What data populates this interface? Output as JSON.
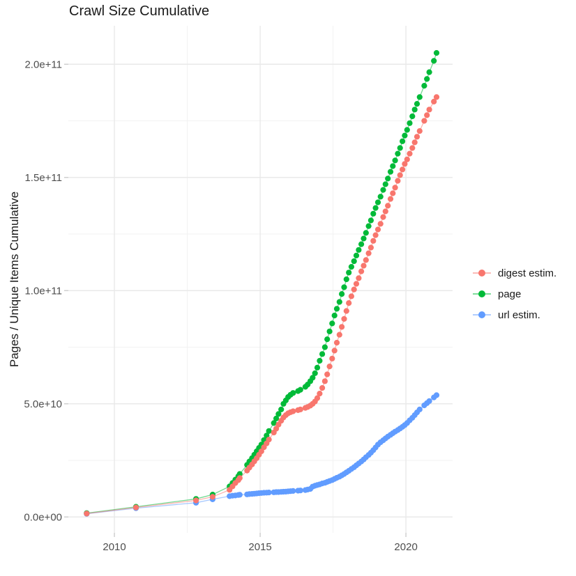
{
  "page": {
    "title": "Crawl Size Cumulative"
  },
  "chart_data": {
    "type": "scatter",
    "style": "points-with-lines",
    "title": "Crawl Size Cumulative",
    "xlabel": "",
    "ylabel": "Pages / Unique Items Cumulative",
    "x_unit": "year",
    "value_unit_note": "values stored in billions (1e9)",
    "xlim": [
      2008.42,
      2021.6
    ],
    "ylim_e9": [
      -7,
      217
    ],
    "grid": true,
    "legend_position": "right",
    "x_major_ticks": [
      {
        "value": 2010,
        "label": "2010"
      },
      {
        "value": 2015,
        "label": "2015"
      },
      {
        "value": 2020,
        "label": "2020"
      }
    ],
    "x_minor_ticks": [
      2012.5,
      2017.5
    ],
    "y_major_ticks": [
      {
        "value": 0,
        "label": "0.0e+00"
      },
      {
        "value": 50,
        "label": "5.0e+10"
      },
      {
        "value": 100,
        "label": "1.0e+11"
      },
      {
        "value": 150,
        "label": "1.5e+11"
      },
      {
        "value": 200,
        "label": "2.0e+11"
      }
    ],
    "y_minor_ticks": [
      25,
      75,
      125,
      175
    ],
    "colors": {
      "digest": "#F8766D",
      "page": "#00BA38",
      "url": "#619CFF"
    },
    "draw_order": [
      1,
      2,
      0
    ],
    "series": [
      {
        "name": "digest estim.",
        "color": "#F8766D",
        "points": [
          [
            2009.05,
            1.5
          ],
          [
            2010.74,
            4.2
          ],
          [
            2012.8,
            7.3
          ],
          [
            2013.37,
            8.9
          ],
          [
            2013.95,
            12
          ],
          [
            2014.05,
            13.5
          ],
          [
            2014.15,
            15
          ],
          [
            2014.25,
            16.3
          ],
          [
            2014.3,
            17.2
          ],
          [
            2014.55,
            20.5
          ],
          [
            2014.63,
            21.8
          ],
          [
            2014.72,
            23.2
          ],
          [
            2014.8,
            24.6
          ],
          [
            2014.88,
            26
          ],
          [
            2014.96,
            27.5
          ],
          [
            2015.04,
            29
          ],
          [
            2015.13,
            30.8
          ],
          [
            2015.22,
            32.5
          ],
          [
            2015.3,
            34.2
          ],
          [
            2015.47,
            37.3
          ],
          [
            2015.55,
            39
          ],
          [
            2015.63,
            40.8
          ],
          [
            2015.72,
            42.5
          ],
          [
            2015.8,
            44
          ],
          [
            2015.88,
            45
          ],
          [
            2015.96,
            45.8
          ],
          [
            2016.04,
            46.3
          ],
          [
            2016.13,
            46.7
          ],
          [
            2016.3,
            47.2
          ],
          [
            2016.38,
            47.5
          ],
          [
            2016.55,
            48.2
          ],
          [
            2016.63,
            48.6
          ],
          [
            2016.72,
            49.2
          ],
          [
            2016.8,
            50
          ],
          [
            2016.88,
            51
          ],
          [
            2016.96,
            52.5
          ],
          [
            2017.04,
            54.5
          ],
          [
            2017.13,
            57
          ],
          [
            2017.22,
            60
          ],
          [
            2017.3,
            63
          ],
          [
            2017.38,
            66.5
          ],
          [
            2017.47,
            70
          ],
          [
            2017.55,
            73.5
          ],
          [
            2017.63,
            77
          ],
          [
            2017.72,
            80.5
          ],
          [
            2017.8,
            84
          ],
          [
            2017.88,
            87.5
          ],
          [
            2017.96,
            91
          ],
          [
            2018.04,
            94.5
          ],
          [
            2018.13,
            97.5
          ],
          [
            2018.22,
            100.5
          ],
          [
            2018.3,
            103
          ],
          [
            2018.38,
            105.5
          ],
          [
            2018.47,
            108.5
          ],
          [
            2018.55,
            111
          ],
          [
            2018.63,
            113.5
          ],
          [
            2018.72,
            116.5
          ],
          [
            2018.8,
            119
          ],
          [
            2018.88,
            122
          ],
          [
            2018.96,
            124.5
          ],
          [
            2019.04,
            127
          ],
          [
            2019.13,
            129.5
          ],
          [
            2019.22,
            132.5
          ],
          [
            2019.3,
            135
          ],
          [
            2019.38,
            137.5
          ],
          [
            2019.47,
            140.5
          ],
          [
            2019.55,
            143
          ],
          [
            2019.63,
            145.5
          ],
          [
            2019.72,
            148.5
          ],
          [
            2019.8,
            151
          ],
          [
            2019.88,
            153.5
          ],
          [
            2019.96,
            156
          ],
          [
            2020.04,
            158
          ],
          [
            2020.13,
            160.5
          ],
          [
            2020.22,
            163
          ],
          [
            2020.3,
            165.5
          ],
          [
            2020.38,
            168
          ],
          [
            2020.47,
            170.5
          ],
          [
            2020.63,
            175
          ],
          [
            2020.72,
            177.5
          ],
          [
            2020.8,
            180
          ],
          [
            2020.96,
            183.5
          ],
          [
            2021.05,
            185.5
          ]
        ]
      },
      {
        "name": "page",
        "color": "#00BA38",
        "points": [
          [
            2009.05,
            1.7
          ],
          [
            2010.74,
            4.5
          ],
          [
            2012.8,
            8.0
          ],
          [
            2013.37,
            9.9
          ],
          [
            2013.95,
            13.5
          ],
          [
            2014.05,
            15
          ],
          [
            2014.15,
            16.5
          ],
          [
            2014.25,
            18
          ],
          [
            2014.3,
            19
          ],
          [
            2014.55,
            23
          ],
          [
            2014.63,
            24.5
          ],
          [
            2014.72,
            26
          ],
          [
            2014.8,
            27.5
          ],
          [
            2014.88,
            29
          ],
          [
            2014.96,
            30.5
          ],
          [
            2015.04,
            32
          ],
          [
            2015.13,
            34
          ],
          [
            2015.22,
            36
          ],
          [
            2015.3,
            38
          ],
          [
            2015.47,
            41.5
          ],
          [
            2015.55,
            43.5
          ],
          [
            2015.63,
            45.5
          ],
          [
            2015.72,
            47.5
          ],
          [
            2015.8,
            50
          ],
          [
            2015.88,
            51.5
          ],
          [
            2015.96,
            53
          ],
          [
            2016.04,
            54
          ],
          [
            2016.13,
            54.8
          ],
          [
            2016.3,
            55.6
          ],
          [
            2016.38,
            56.2
          ],
          [
            2016.55,
            57.5
          ],
          [
            2016.63,
            58.5
          ],
          [
            2016.72,
            60
          ],
          [
            2016.8,
            61.5
          ],
          [
            2016.88,
            63.5
          ],
          [
            2016.96,
            66
          ],
          [
            2017.04,
            69
          ],
          [
            2017.13,
            72
          ],
          [
            2017.22,
            75
          ],
          [
            2017.3,
            78.5
          ],
          [
            2017.38,
            82
          ],
          [
            2017.47,
            85.5
          ],
          [
            2017.55,
            89
          ],
          [
            2017.63,
            92
          ],
          [
            2017.72,
            95
          ],
          [
            2017.8,
            98.5
          ],
          [
            2017.88,
            101.5
          ],
          [
            2017.96,
            105
          ],
          [
            2018.04,
            108
          ],
          [
            2018.13,
            110.5
          ],
          [
            2018.22,
            113
          ],
          [
            2018.3,
            115.5
          ],
          [
            2018.38,
            118
          ],
          [
            2018.47,
            120.5
          ],
          [
            2018.55,
            123
          ],
          [
            2018.63,
            125.5
          ],
          [
            2018.72,
            128.5
          ],
          [
            2018.8,
            131
          ],
          [
            2018.88,
            134
          ],
          [
            2018.96,
            136.5
          ],
          [
            2019.04,
            139
          ],
          [
            2019.13,
            141.5
          ],
          [
            2019.22,
            144.5
          ],
          [
            2019.3,
            147
          ],
          [
            2019.38,
            149.5
          ],
          [
            2019.47,
            152.5
          ],
          [
            2019.55,
            155
          ],
          [
            2019.63,
            157.5
          ],
          [
            2019.72,
            160.5
          ],
          [
            2019.8,
            163
          ],
          [
            2019.88,
            166
          ],
          [
            2019.96,
            168.5
          ],
          [
            2020.04,
            171
          ],
          [
            2020.13,
            174
          ],
          [
            2020.22,
            177
          ],
          [
            2020.3,
            180
          ],
          [
            2020.38,
            182.5
          ],
          [
            2020.47,
            185.5
          ],
          [
            2020.63,
            190.5
          ],
          [
            2020.72,
            193.5
          ],
          [
            2020.8,
            196.5
          ],
          [
            2020.96,
            201.5
          ],
          [
            2021.05,
            205
          ]
        ]
      },
      {
        "name": "url estim.",
        "color": "#619CFF",
        "points": [
          [
            2009.05,
            1.4
          ],
          [
            2010.74,
            3.9
          ],
          [
            2012.8,
            6.3
          ],
          [
            2013.37,
            7.8
          ],
          [
            2013.95,
            9.2
          ],
          [
            2014.05,
            9.4
          ],
          [
            2014.15,
            9.5
          ],
          [
            2014.25,
            9.7
          ],
          [
            2014.3,
            9.8
          ],
          [
            2014.55,
            10
          ],
          [
            2014.63,
            10.1
          ],
          [
            2014.72,
            10.2
          ],
          [
            2014.8,
            10.3
          ],
          [
            2014.88,
            10.4
          ],
          [
            2014.96,
            10.5
          ],
          [
            2015.04,
            10.6
          ],
          [
            2015.13,
            10.7
          ],
          [
            2015.22,
            10.75
          ],
          [
            2015.3,
            10.8
          ],
          [
            2015.47,
            10.9
          ],
          [
            2015.55,
            11
          ],
          [
            2015.63,
            11
          ],
          [
            2015.72,
            11.1
          ],
          [
            2015.8,
            11.15
          ],
          [
            2015.88,
            11.2
          ],
          [
            2015.96,
            11.3
          ],
          [
            2016.04,
            11.4
          ],
          [
            2016.13,
            11.5
          ],
          [
            2016.3,
            11.6
          ],
          [
            2016.38,
            11.7
          ],
          [
            2016.55,
            11.9
          ],
          [
            2016.63,
            12.1
          ],
          [
            2016.72,
            12.4
          ],
          [
            2016.8,
            13.4
          ],
          [
            2016.88,
            13.8
          ],
          [
            2016.96,
            14.1
          ],
          [
            2017.04,
            14.4
          ],
          [
            2017.13,
            14.8
          ],
          [
            2017.22,
            15.1
          ],
          [
            2017.3,
            15.5
          ],
          [
            2017.38,
            15.9
          ],
          [
            2017.47,
            16.3
          ],
          [
            2017.55,
            16.8
          ],
          [
            2017.63,
            17.3
          ],
          [
            2017.72,
            17.8
          ],
          [
            2017.8,
            18.4
          ],
          [
            2017.88,
            19
          ],
          [
            2017.96,
            19.7
          ],
          [
            2018.04,
            20.4
          ],
          [
            2018.13,
            21.2
          ],
          [
            2018.22,
            22
          ],
          [
            2018.3,
            22.8
          ],
          [
            2018.38,
            23.6
          ],
          [
            2018.47,
            24.5
          ],
          [
            2018.55,
            25.4
          ],
          [
            2018.63,
            26.4
          ],
          [
            2018.72,
            27.4
          ],
          [
            2018.8,
            28.4
          ],
          [
            2018.88,
            29.5
          ],
          [
            2018.96,
            30.7
          ],
          [
            2019.04,
            32
          ],
          [
            2019.13,
            33
          ],
          [
            2019.22,
            33.9
          ],
          [
            2019.3,
            34.7
          ],
          [
            2019.38,
            35.5
          ],
          [
            2019.47,
            36.3
          ],
          [
            2019.55,
            37
          ],
          [
            2019.63,
            37.7
          ],
          [
            2019.72,
            38.4
          ],
          [
            2019.8,
            39.1
          ],
          [
            2019.88,
            39.8
          ],
          [
            2019.96,
            40.6
          ],
          [
            2020.04,
            41.5
          ],
          [
            2020.13,
            42.7
          ],
          [
            2020.22,
            43.8
          ],
          [
            2020.3,
            45
          ],
          [
            2020.38,
            46.2
          ],
          [
            2020.47,
            47.5
          ],
          [
            2020.63,
            49.3
          ],
          [
            2020.72,
            50.3
          ],
          [
            2020.8,
            51.2
          ],
          [
            2020.96,
            52.8
          ],
          [
            2021.05,
            53.8
          ]
        ]
      }
    ]
  }
}
